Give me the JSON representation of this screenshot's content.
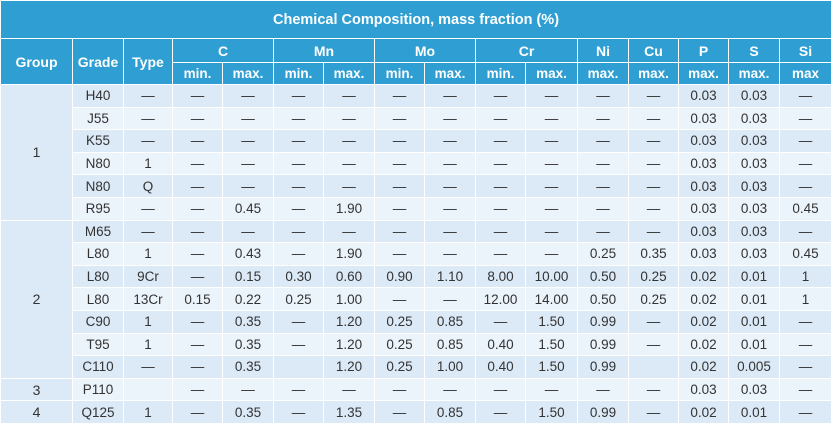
{
  "title": "Chemical Composition, mass fraction (%)",
  "headers": {
    "group": "Group",
    "grade": "Grade",
    "type": "Type",
    "elements": [
      {
        "name": "C",
        "sub": [
          "min.",
          "max."
        ]
      },
      {
        "name": "Mn",
        "sub": [
          "min.",
          "max."
        ]
      },
      {
        "name": "Mo",
        "sub": [
          "min.",
          "max."
        ]
      },
      {
        "name": "Cr",
        "sub": [
          "min.",
          "max."
        ]
      },
      {
        "name": "Ni",
        "sub": [
          "max."
        ]
      },
      {
        "name": "Cu",
        "sub": [
          "max."
        ]
      },
      {
        "name": "P",
        "sub": [
          "max."
        ]
      },
      {
        "name": "S",
        "sub": [
          "max."
        ]
      },
      {
        "name": "Si",
        "sub": [
          "max"
        ]
      }
    ]
  },
  "groups": [
    {
      "label": "1",
      "rows": [
        [
          "H40",
          "—",
          "—",
          "—",
          "—",
          "—",
          "—",
          "—",
          "—",
          "—",
          "—",
          "—",
          "0.03",
          "0.03",
          "—"
        ],
        [
          "J55",
          "—",
          "—",
          "—",
          "—",
          "—",
          "—",
          "—",
          "—",
          "—",
          "—",
          "—",
          "0.03",
          "0.03",
          "—"
        ],
        [
          "K55",
          "—",
          "—",
          "—",
          "—",
          "—",
          "—",
          "—",
          "—",
          "—",
          "—",
          "—",
          "0.03",
          "0.03",
          "—"
        ],
        [
          "N80",
          "1",
          "—",
          "—",
          "—",
          "—",
          "—",
          "—",
          "—",
          "—",
          "—",
          "—",
          "0.03",
          "0.03",
          "—"
        ],
        [
          "N80",
          "Q",
          "—",
          "—",
          "—",
          "—",
          "—",
          "—",
          "—",
          "—",
          "—",
          "—",
          "0.03",
          "0.03",
          "—"
        ],
        [
          "R95",
          "—",
          "—",
          "0.45",
          "—",
          "1.90",
          "—",
          "—",
          "—",
          "—",
          "—",
          "—",
          "0.03",
          "0.03",
          "0.45"
        ]
      ]
    },
    {
      "label": "2",
      "rows": [
        [
          "M65",
          "—",
          "—",
          "—",
          "—",
          "—",
          "—",
          "—",
          "—",
          "—",
          "—",
          "—",
          "0.03",
          "0.03",
          "—"
        ],
        [
          "L80",
          "1",
          "—",
          "0.43",
          "—",
          "1.90",
          "—",
          "—",
          "—",
          "—",
          "0.25",
          "0.35",
          "0.03",
          "0.03",
          "0.45"
        ],
        [
          "L80",
          "9Cr",
          "—",
          "0.15",
          "0.30",
          "0.60",
          "0.90",
          "1.10",
          "8.00",
          "10.00",
          "0.50",
          "0.25",
          "0.02",
          "0.01",
          "1"
        ],
        [
          "L80",
          "13Cr",
          "0.15",
          "0.22",
          "0.25",
          "1.00",
          "—",
          "—",
          "12.00",
          "14.00",
          "0.50",
          "0.25",
          "0.02",
          "0.01",
          "1"
        ],
        [
          "C90",
          "1",
          "—",
          "0.35",
          "—",
          "1.20",
          "0.25",
          "0.85",
          "—",
          "1.50",
          "0.99",
          "—",
          "0.02",
          "0.01",
          "—"
        ],
        [
          "T95",
          "1",
          "—",
          "0.35",
          "—",
          "1.20",
          "0.25",
          "0.85",
          "0.40",
          "1.50",
          "0.99",
          "—",
          "0.02",
          "0.01",
          "—"
        ],
        [
          "C110",
          "—",
          "—",
          "0.35",
          "",
          "1.20",
          "0.25",
          "1.00",
          "0.40",
          "1.50",
          "0.99",
          "",
          "0.02",
          "0.005",
          "—"
        ]
      ]
    },
    {
      "label": "3",
      "rows": [
        [
          "P110",
          "",
          "—",
          "—",
          "—",
          "—",
          "—",
          "—",
          "—",
          "—",
          "—",
          "—",
          "0.03",
          "0.03",
          "—"
        ]
      ]
    },
    {
      "label": "4",
      "rows": [
        [
          "Q125",
          "1",
          "—",
          "0.35",
          "—",
          "1.35",
          "—",
          "0.85",
          "—",
          "1.50",
          "0.99",
          "—",
          "0.02",
          "0.01",
          "—"
        ]
      ]
    }
  ]
}
